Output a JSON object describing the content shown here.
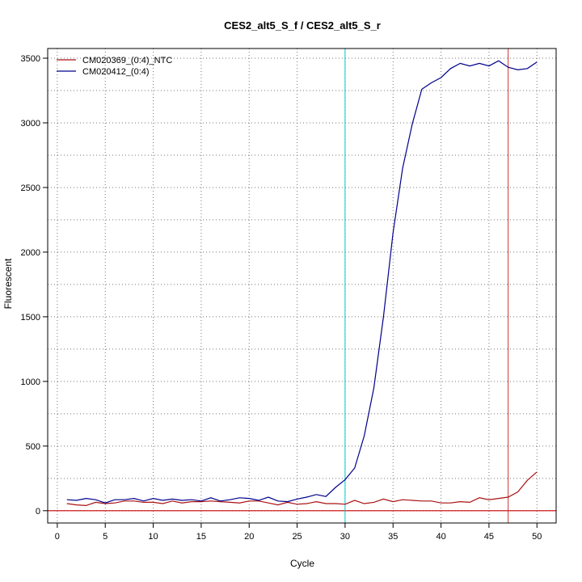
{
  "chart_data": {
    "type": "line",
    "title": "CES2_alt5_S_f / CES2_alt5_S_r",
    "xlabel": "Cycle",
    "ylabel": "Fluorescent",
    "xlim": [
      -1,
      52
    ],
    "ylim": [
      -95,
      3575
    ],
    "xticks": [
      0,
      5,
      10,
      15,
      20,
      25,
      30,
      35,
      40,
      45,
      50
    ],
    "yticks": [
      0,
      500,
      1000,
      1500,
      2000,
      2500,
      3000,
      3500
    ],
    "grid": "dotted",
    "legend_position": "top-left",
    "x": [
      1,
      2,
      3,
      4,
      5,
      6,
      7,
      8,
      9,
      10,
      11,
      12,
      13,
      14,
      15,
      16,
      17,
      18,
      19,
      20,
      21,
      22,
      23,
      24,
      25,
      26,
      27,
      28,
      29,
      30,
      31,
      32,
      33,
      34,
      35,
      36,
      37,
      38,
      39,
      40,
      41,
      42,
      43,
      44,
      45,
      46,
      47,
      48,
      49,
      50
    ],
    "series": [
      {
        "name": "CM020369_(0:4)_NTC",
        "color": "#aa1111",
        "values": [
          55,
          45,
          40,
          65,
          55,
          60,
          75,
          75,
          65,
          65,
          55,
          75,
          60,
          70,
          70,
          75,
          70,
          65,
          60,
          75,
          75,
          60,
          45,
          65,
          50,
          55,
          70,
          55,
          55,
          50,
          80,
          55,
          65,
          90,
          70,
          85,
          80,
          75,
          75,
          60,
          60,
          70,
          65,
          100,
          85,
          95,
          105,
          145,
          235,
          300
        ]
      },
      {
        "name": "CM020412_(0:4)",
        "color": "#00008b",
        "values": [
          85,
          80,
          95,
          85,
          60,
          85,
          85,
          95,
          75,
          95,
          80,
          90,
          80,
          85,
          75,
          100,
          75,
          85,
          100,
          95,
          80,
          105,
          75,
          70,
          90,
          105,
          125,
          110,
          180,
          240,
          330,
          580,
          950,
          1500,
          2150,
          2650,
          2990,
          3260,
          3310,
          3350,
          3420,
          3460,
          3440,
          3460,
          3440,
          3480,
          3430,
          3410,
          3420,
          3470
        ]
      }
    ],
    "vlines": [
      {
        "x": 30,
        "color": "#00cccc"
      },
      {
        "x": 47,
        "color": "#cc3333"
      }
    ],
    "hlines": [
      {
        "y": 0,
        "color": "#cc0000"
      }
    ]
  }
}
